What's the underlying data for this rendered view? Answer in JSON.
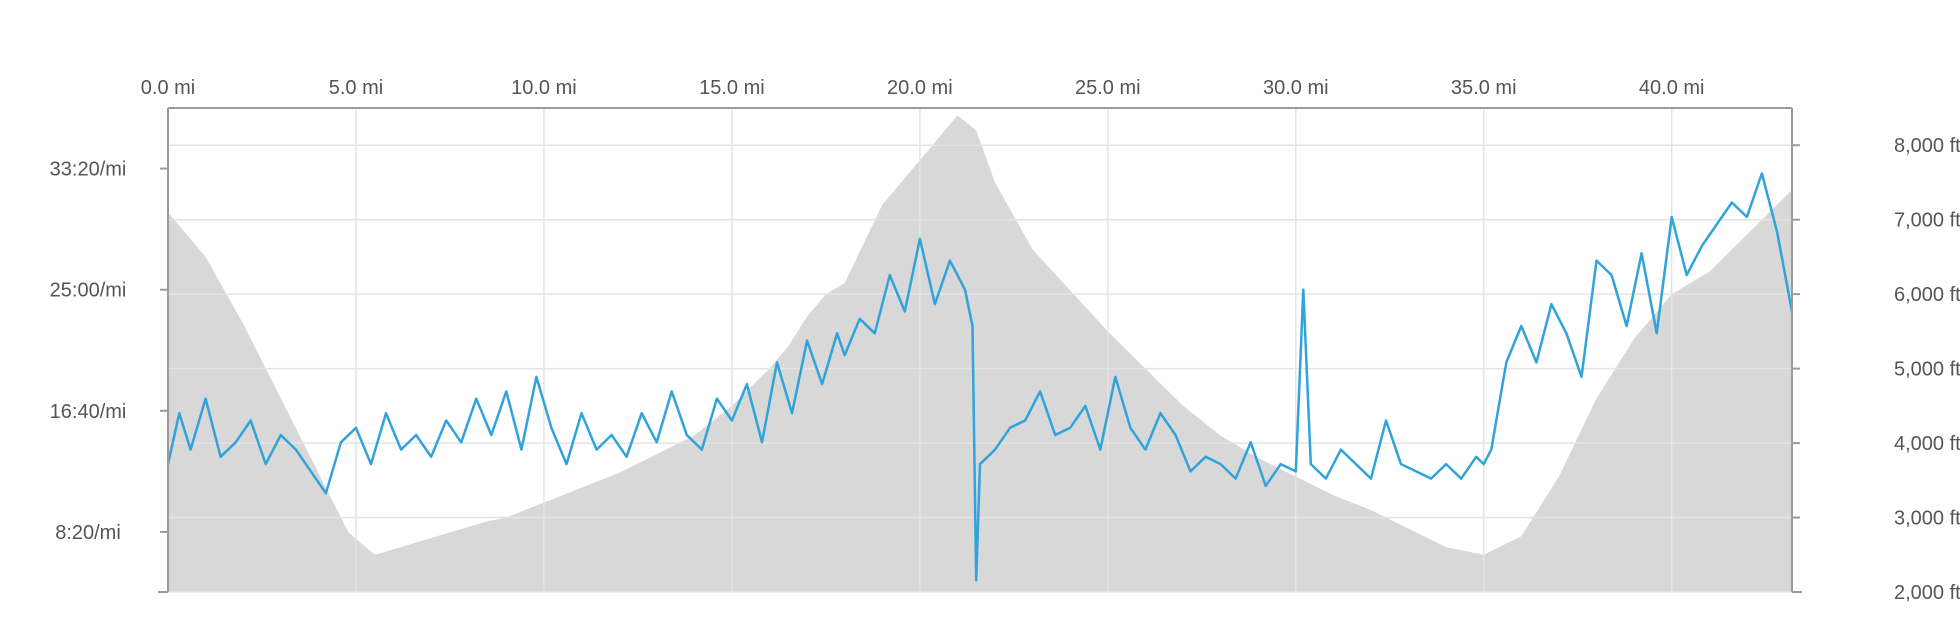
{
  "chart_data": {
    "type": "area",
    "title": "",
    "xlabel": "",
    "ylabel": "",
    "x_ticks": [
      "0.0 mi",
      "5.0 mi",
      "10.0 mi",
      "15.0 mi",
      "20.0 mi",
      "25.0 mi",
      "30.0 mi",
      "35.0 mi",
      "40.0 mi"
    ],
    "elevation_ticks": [
      "2,000 ft",
      "3,000 ft",
      "4,000 ft",
      "5,000 ft",
      "6,000 ft",
      "7,000 ft",
      "8,000 ft"
    ],
    "pace_ticks": [
      "8:20/mi",
      "16:40/mi",
      "25:00/mi",
      "33:20/mi"
    ],
    "xlim": [
      0,
      43.2
    ],
    "elevation_ylim": [
      2000,
      8500
    ],
    "pace_ylim_min_per_mi": [
      4.2,
      37.5
    ],
    "grid": true,
    "colors": {
      "elevation_fill": "#d8d8d8",
      "pace_line": "#2fa3da",
      "grid": "#e4e4e4",
      "axis": "#9a9a9a",
      "text": "#555555"
    },
    "series": [
      {
        "kind": "elevation_area",
        "unit": "ft",
        "x": [
          0.0,
          1.0,
          2.0,
          3.0,
          4.0,
          4.8,
          5.5,
          6.5,
          7.5,
          8.5,
          9.0,
          10.0,
          11.0,
          12.0,
          13.0,
          14.0,
          15.0,
          16.0,
          16.5,
          17.0,
          17.5,
          18.0,
          19.0,
          20.0,
          21.0,
          21.5,
          22.0,
          23.0,
          24.0,
          25.0,
          26.0,
          27.0,
          28.0,
          29.0,
          30.0,
          31.0,
          32.0,
          33.0,
          34.0,
          35.0,
          36.0,
          37.0,
          38.0,
          39.0,
          40.0,
          41.0,
          42.0,
          43.2
        ],
        "values": [
          7100,
          6500,
          5600,
          4600,
          3600,
          2800,
          2500,
          2650,
          2800,
          2950,
          3000,
          3200,
          3400,
          3600,
          3850,
          4100,
          4500,
          5000,
          5300,
          5700,
          6000,
          6150,
          7200,
          7800,
          8400,
          8200,
          7500,
          6600,
          6050,
          5500,
          5000,
          4500,
          4100,
          3800,
          3550,
          3300,
          3100,
          2850,
          2600,
          2500,
          2750,
          3550,
          4600,
          5400,
          6000,
          6300,
          6800,
          7400
        ]
      },
      {
        "kind": "pace_line",
        "unit": "min/mi",
        "x": [
          0.0,
          0.3,
          0.6,
          1.0,
          1.4,
          1.8,
          2.2,
          2.6,
          3.0,
          3.4,
          3.8,
          4.2,
          4.6,
          5.0,
          5.4,
          5.8,
          6.2,
          6.6,
          7.0,
          7.4,
          7.8,
          8.2,
          8.6,
          9.0,
          9.4,
          9.8,
          10.2,
          10.6,
          11.0,
          11.4,
          11.8,
          12.2,
          12.6,
          13.0,
          13.4,
          13.8,
          14.2,
          14.6,
          15.0,
          15.4,
          15.8,
          16.2,
          16.6,
          17.0,
          17.4,
          17.8,
          18.0,
          18.4,
          18.8,
          19.2,
          19.6,
          20.0,
          20.4,
          20.8,
          21.2,
          21.4,
          21.5,
          21.6,
          22.0,
          22.4,
          22.8,
          23.2,
          23.6,
          24.0,
          24.4,
          24.8,
          25.2,
          25.6,
          26.0,
          26.4,
          26.8,
          27.2,
          27.6,
          28.0,
          28.4,
          28.8,
          29.2,
          29.6,
          30.0,
          30.2,
          30.4,
          30.8,
          31.2,
          31.6,
          32.0,
          32.4,
          32.8,
          33.2,
          33.6,
          34.0,
          34.4,
          34.8,
          35.0,
          35.2,
          35.6,
          36.0,
          36.4,
          36.8,
          37.2,
          37.6,
          38.0,
          38.4,
          38.8,
          39.2,
          39.6,
          40.0,
          40.4,
          40.8,
          41.2,
          41.6,
          42.0,
          42.4,
          42.8,
          43.2
        ],
        "values": [
          13.0,
          16.5,
          14.0,
          17.5,
          13.5,
          14.5,
          16.0,
          13.0,
          15.0,
          14.0,
          12.5,
          11.0,
          14.5,
          15.5,
          13.0,
          16.5,
          14.0,
          15.0,
          13.5,
          16.0,
          14.5,
          17.5,
          15.0,
          18.0,
          14.0,
          19.0,
          15.5,
          13.0,
          16.5,
          14.0,
          15.0,
          13.5,
          16.5,
          14.5,
          18.0,
          15.0,
          14.0,
          17.5,
          16.0,
          18.5,
          14.5,
          20.0,
          16.5,
          21.5,
          18.5,
          22.0,
          20.5,
          23.0,
          22.0,
          26.0,
          23.5,
          28.5,
          24.0,
          27.0,
          25.0,
          22.5,
          5.0,
          13.0,
          14.0,
          15.5,
          16.0,
          18.0,
          15.0,
          15.5,
          17.0,
          14.0,
          19.0,
          15.5,
          14.0,
          16.5,
          15.0,
          12.5,
          13.5,
          13.0,
          12.0,
          14.5,
          11.5,
          13.0,
          12.5,
          25.0,
          13.0,
          12.0,
          14.0,
          13.0,
          12.0,
          16.0,
          13.0,
          12.5,
          12.0,
          13.0,
          12.0,
          13.5,
          13.0,
          14.0,
          20.0,
          22.5,
          20.0,
          24.0,
          22.0,
          19.0,
          27.0,
          26.0,
          22.5,
          27.5,
          22.0,
          30.0,
          26.0,
          28.0,
          29.5,
          31.0,
          30.0,
          33.0,
          29.0,
          23.5
        ]
      }
    ]
  }
}
